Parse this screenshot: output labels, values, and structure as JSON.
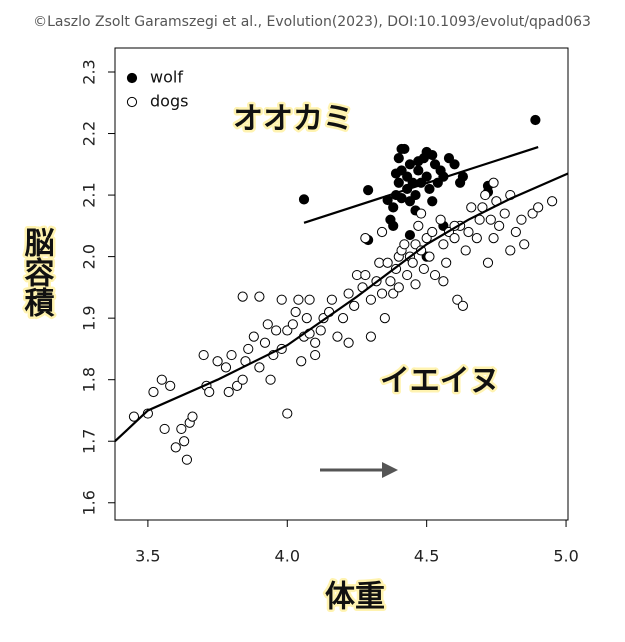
{
  "chart_data": {
    "type": "scatter",
    "copyright": "©Laszlo Zsolt Garamszegi et al., Evolution(2023), DOI:10.1093/evolut/qpad063",
    "xlabel": "体重",
    "ylabel": "脳容積",
    "annotations": [
      "オオカミ",
      "イエイヌ"
    ],
    "xlim": [
      3.382,
      5.007
    ],
    "ylim": [
      1.572,
      2.339
    ],
    "xticks": [
      {
        "value": 3.5,
        "label": "3.5"
      },
      {
        "value": 4.0,
        "label": "4.0"
      },
      {
        "value": 4.5,
        "label": "4.5"
      },
      {
        "value": 5.0,
        "label": "5.0"
      }
    ],
    "yticks": [
      1.6,
      1.7,
      1.8,
      1.9,
      {
        "value": 2.0,
        "label": "2.0"
      },
      2.1,
      2.2,
      2.3
    ],
    "legend": "top-left",
    "series": [
      {
        "name": "wolf",
        "color": "#000000",
        "filled": true,
        "x": [
          4.06,
          4.89,
          4.29,
          4.29,
          4.36,
          4.37,
          4.38,
          4.39,
          4.4,
          4.4,
          4.41,
          4.41,
          4.42,
          4.43,
          4.43,
          4.44,
          4.44,
          4.45,
          4.46,
          4.47,
          4.48,
          4.49,
          4.5,
          4.5,
          4.51,
          4.52,
          4.53,
          4.54,
          4.55,
          4.56,
          4.58,
          4.6,
          4.62,
          4.63,
          4.72,
          4.72,
          4.41,
          4.38,
          4.44,
          4.5,
          4.56,
          4.52,
          4.46,
          4.39,
          4.47
        ],
        "y": [
          2.093,
          2.222,
          2.027,
          2.108,
          2.092,
          2.06,
          2.08,
          2.1,
          2.12,
          2.16,
          2.14,
          2.175,
          2.175,
          2.13,
          2.11,
          2.09,
          2.15,
          2.12,
          2.1,
          2.14,
          2.12,
          2.16,
          2.17,
          2.13,
          2.11,
          2.165,
          2.15,
          2.12,
          2.14,
          2.13,
          2.16,
          2.15,
          2.12,
          2.13,
          2.115,
          2.105,
          2.095,
          2.05,
          2.035,
          2.0,
          2.05,
          2.09,
          2.075,
          2.135,
          2.155
        ]
      },
      {
        "name": "dogs",
        "color": "#000000",
        "filled": false,
        "x": [
          3.45,
          3.5,
          3.52,
          3.55,
          3.56,
          3.58,
          3.6,
          3.62,
          3.63,
          3.64,
          3.65,
          3.66,
          3.7,
          3.71,
          3.72,
          3.75,
          3.78,
          3.79,
          3.8,
          3.82,
          3.84,
          3.85,
          3.86,
          3.88,
          3.9,
          3.92,
          3.93,
          3.94,
          3.95,
          3.96,
          3.98,
          4.0,
          4.0,
          4.02,
          4.03,
          4.05,
          4.06,
          4.07,
          4.08,
          4.1,
          4.1,
          4.12,
          4.13,
          4.15,
          4.16,
          4.18,
          4.2,
          4.22,
          4.24,
          4.25,
          4.27,
          4.28,
          4.3,
          4.3,
          4.32,
          4.33,
          4.34,
          4.35,
          4.36,
          4.37,
          4.38,
          4.39,
          4.4,
          4.4,
          4.41,
          4.42,
          4.43,
          4.44,
          4.45,
          4.46,
          4.47,
          4.48,
          4.49,
          4.5,
          4.51,
          4.52,
          4.53,
          4.55,
          4.56,
          4.57,
          4.58,
          4.6,
          4.61,
          4.62,
          4.64,
          4.65,
          4.66,
          4.68,
          4.69,
          4.7,
          4.71,
          4.72,
          4.73,
          4.74,
          4.75,
          4.76,
          4.78,
          4.8,
          4.8,
          4.82,
          4.84,
          4.85,
          4.88,
          4.9,
          4.95,
          3.84,
          3.9,
          3.98,
          4.04,
          4.08,
          4.22,
          4.28,
          4.34,
          4.46,
          4.63,
          4.6,
          4.74,
          4.56,
          4.48
        ],
        "y": [
          1.74,
          1.745,
          1.78,
          1.8,
          1.72,
          1.79,
          1.69,
          1.72,
          1.7,
          1.67,
          1.73,
          1.74,
          1.84,
          1.79,
          1.78,
          1.83,
          1.82,
          1.78,
          1.84,
          1.79,
          1.8,
          1.83,
          1.85,
          1.87,
          1.82,
          1.86,
          1.89,
          1.8,
          1.84,
          1.88,
          1.85,
          1.745,
          1.88,
          1.89,
          1.91,
          1.83,
          1.87,
          1.9,
          1.93,
          1.86,
          1.84,
          1.88,
          1.9,
          1.91,
          1.93,
          1.87,
          1.9,
          1.94,
          1.92,
          1.97,
          1.95,
          1.97,
          1.87,
          1.93,
          1.96,
          1.99,
          1.94,
          1.9,
          1.99,
          1.96,
          1.94,
          1.98,
          2.0,
          1.95,
          2.01,
          2.02,
          1.97,
          2.0,
          1.99,
          2.02,
          2.05,
          2.01,
          1.98,
          2.03,
          2.0,
          2.04,
          1.97,
          2.06,
          2.02,
          1.99,
          2.04,
          2.03,
          1.93,
          2.05,
          2.01,
          2.04,
          2.08,
          2.03,
          2.06,
          2.08,
          2.1,
          1.99,
          2.06,
          2.03,
          2.09,
          2.05,
          2.07,
          2.01,
          2.1,
          2.04,
          2.06,
          2.02,
          2.07,
          2.08,
          2.09,
          1.935,
          1.935,
          1.93,
          1.93,
          1.875,
          1.86,
          2.03,
          2.04,
          1.955,
          1.92,
          2.05,
          2.12,
          1.96,
          2.07
        ]
      }
    ],
    "lines": [
      {
        "x": [
          4.06,
          4.9
        ],
        "y": [
          2.055,
          2.178
        ]
      },
      {
        "x": [
          3.382,
          3.5,
          3.75,
          4.0,
          4.25,
          4.5,
          4.65,
          4.8,
          5.007
        ],
        "y": [
          1.7,
          1.75,
          1.8,
          1.856,
          1.935,
          2.02,
          2.06,
          2.094,
          2.135
        ]
      }
    ]
  }
}
